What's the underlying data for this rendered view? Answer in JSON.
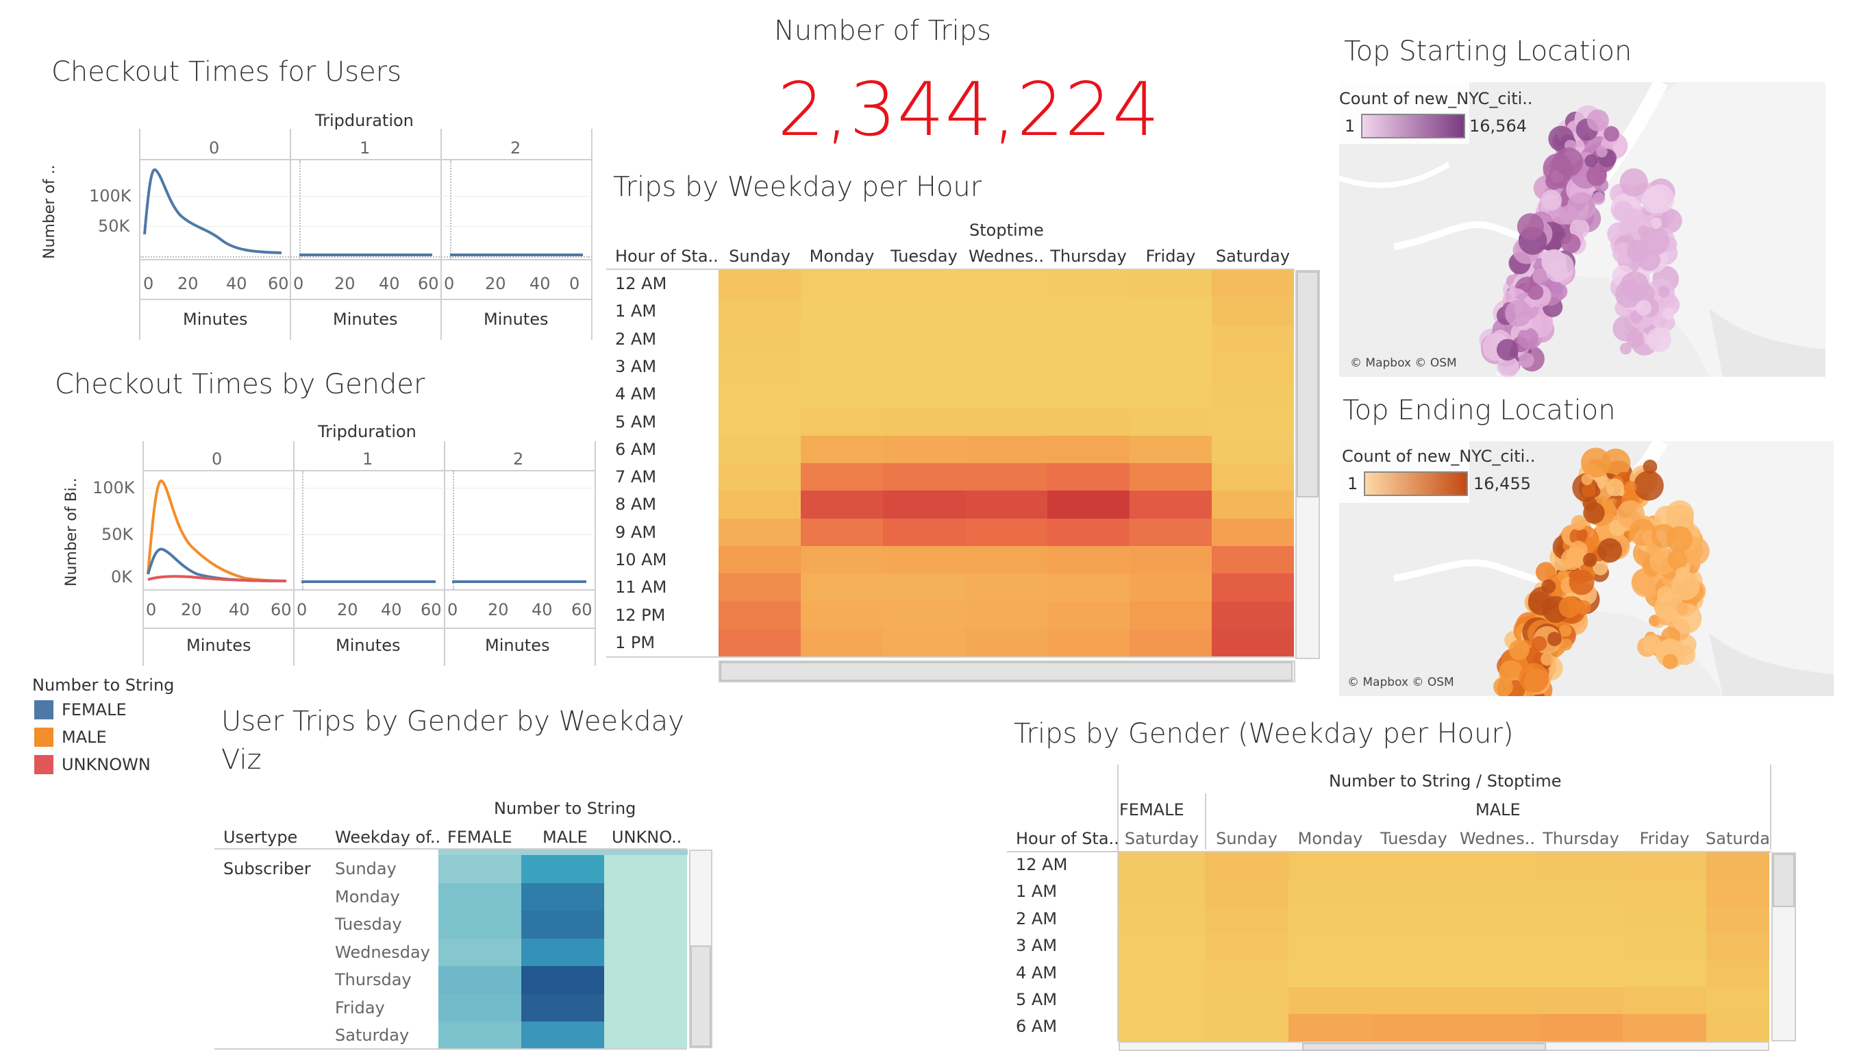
{
  "number_of_trips": {
    "title": "Number of Trips",
    "value": "2,344,224",
    "color": "#e8121b"
  },
  "checkout_users": {
    "title": "Checkout Times for Users",
    "header": "Tripduration",
    "panels": [
      "0",
      "1",
      "2"
    ],
    "ylabel": "Number of ..",
    "yticks": [
      "100K",
      "50K"
    ],
    "xticks": [
      "0",
      "20",
      "40",
      "60"
    ],
    "xlabel": "Minutes"
  },
  "checkout_gender": {
    "title": "Checkout Times by Gender",
    "header": "Tripduration",
    "panels": [
      "0",
      "1",
      "2"
    ],
    "ylabel": "Number of Bi..",
    "yticks": [
      "100K",
      "50K",
      "0K"
    ],
    "xticks": [
      "0",
      "20",
      "40",
      "60"
    ],
    "xlabel": "Minutes"
  },
  "gender_legend": {
    "title": "Number to String",
    "items": [
      {
        "label": "FEMALE",
        "color": "#4e79a7"
      },
      {
        "label": "MALE",
        "color": "#f28e2b"
      },
      {
        "label": "UNKNOWN",
        "color": "#e15759"
      }
    ]
  },
  "weekday_hour": {
    "title": "Trips by Weekday per Hour",
    "header": "Stoptime",
    "row_header": "Hour of Sta..",
    "days": [
      "Sunday",
      "Monday",
      "Tuesday",
      "Wednes..",
      "Thursday",
      "Friday",
      "Saturday"
    ],
    "hours": [
      "12 AM",
      "1 AM",
      "2 AM",
      "3 AM",
      "4 AM",
      "5 AM",
      "6 AM",
      "7 AM",
      "8 AM",
      "9 AM",
      "10 AM",
      "11 AM",
      "12 PM",
      "1 PM"
    ],
    "intensity": [
      [
        0.1,
        0.02,
        0.02,
        0.02,
        0.03,
        0.04,
        0.16
      ],
      [
        0.06,
        0.0,
        0.0,
        0.0,
        0.01,
        0.01,
        0.12
      ],
      [
        0.04,
        0.0,
        0.0,
        0.0,
        0.0,
        0.0,
        0.08
      ],
      [
        0.03,
        0.0,
        0.0,
        0.0,
        0.0,
        0.0,
        0.06
      ],
      [
        0.02,
        0.0,
        0.0,
        0.0,
        0.0,
        0.0,
        0.04
      ],
      [
        0.02,
        0.06,
        0.07,
        0.07,
        0.07,
        0.05,
        0.03
      ],
      [
        0.04,
        0.3,
        0.32,
        0.33,
        0.35,
        0.28,
        0.05
      ],
      [
        0.08,
        0.6,
        0.64,
        0.64,
        0.68,
        0.56,
        0.1
      ],
      [
        0.14,
        0.84,
        0.88,
        0.86,
        0.95,
        0.8,
        0.22
      ],
      [
        0.28,
        0.64,
        0.72,
        0.7,
        0.74,
        0.66,
        0.4
      ],
      [
        0.42,
        0.32,
        0.34,
        0.35,
        0.38,
        0.4,
        0.64
      ],
      [
        0.52,
        0.26,
        0.25,
        0.28,
        0.3,
        0.36,
        0.78
      ],
      [
        0.6,
        0.3,
        0.28,
        0.3,
        0.34,
        0.42,
        0.84
      ],
      [
        0.64,
        0.34,
        0.3,
        0.33,
        0.38,
        0.46,
        0.86
      ]
    ]
  },
  "top_start": {
    "title": "Top Starting Location",
    "legend_title": "Count of new_NYC_citi..",
    "min": "1",
    "max": "16,564",
    "attribution": "© Mapbox © OSM"
  },
  "top_end": {
    "title": "Top Ending Location",
    "legend_title": "Count of new_NYC_citi..",
    "min": "1",
    "max": "16,455",
    "attribution": "© Mapbox © OSM"
  },
  "user_trips": {
    "title_line1": "User Trips by Gender by Weekday",
    "title_line2": "Viz",
    "header": "Number to String",
    "col_usertype": "Usertype",
    "col_weekday": "Weekday of..",
    "cols": [
      "FEMALE",
      "MALE",
      "UNKNO.."
    ],
    "usertype": "Subscriber",
    "days": [
      "Sunday",
      "Monday",
      "Tuesday",
      "Wednesday",
      "Thursday",
      "Friday",
      "Saturday"
    ],
    "colors": [
      [
        "#8fcbd1",
        "#3aa2bf",
        "#b8e4da"
      ],
      [
        "#7cc2cd",
        "#2f7da8",
        "#b8e4da"
      ],
      [
        "#7cc2cd",
        "#2d76a3",
        "#b8e4da"
      ],
      [
        "#86c7cf",
        "#3492b8",
        "#b8e4da"
      ],
      [
        "#6fb8c9",
        "#22588f",
        "#b8e4da"
      ],
      [
        "#72bbca",
        "#285f94",
        "#b8e4da"
      ],
      [
        "#7cc2cd",
        "#3a96bb",
        "#b8e4da"
      ]
    ]
  },
  "gender_hour": {
    "title": "Trips by Gender (Weekday per Hour)",
    "header": "Number to String / Stoptime",
    "row_header": "Hour of Sta..",
    "group_female": "FEMALE",
    "group_male": "MALE",
    "cols": [
      "Saturday",
      "Sunday",
      "Monday",
      "Tuesday",
      "Wednes..",
      "Thursday",
      "Friday",
      "Saturda"
    ],
    "hours": [
      "12 AM",
      "1 AM",
      "2 AM",
      "3 AM",
      "4 AM",
      "5 AM",
      "6 AM"
    ],
    "intensity": [
      [
        0.05,
        0.14,
        0.06,
        0.06,
        0.06,
        0.07,
        0.08,
        0.22
      ],
      [
        0.04,
        0.12,
        0.04,
        0.04,
        0.04,
        0.05,
        0.06,
        0.2
      ],
      [
        0.03,
        0.1,
        0.03,
        0.03,
        0.03,
        0.03,
        0.04,
        0.17
      ],
      [
        0.02,
        0.08,
        0.02,
        0.02,
        0.02,
        0.02,
        0.03,
        0.14
      ],
      [
        0.02,
        0.06,
        0.02,
        0.02,
        0.02,
        0.02,
        0.02,
        0.1
      ],
      [
        0.02,
        0.05,
        0.12,
        0.12,
        0.12,
        0.13,
        0.1,
        0.06
      ],
      [
        0.02,
        0.05,
        0.34,
        0.36,
        0.36,
        0.4,
        0.32,
        0.08
      ]
    ]
  }
}
